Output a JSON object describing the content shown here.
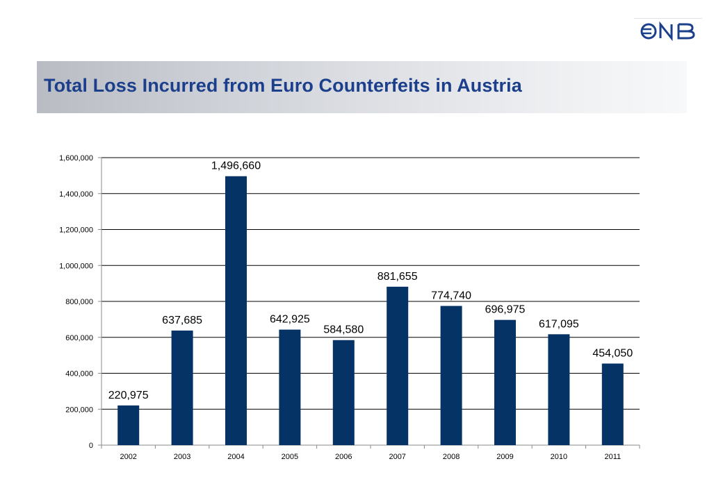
{
  "logo": {
    "text": "ONB"
  },
  "title": "Total Loss Incurred from Euro Counterfeits in Austria",
  "colors": {
    "bar": "#053366",
    "grid": "#000000",
    "title": "#1c3f8c"
  },
  "chart_data": {
    "type": "bar",
    "categories": [
      "2002",
      "2003",
      "2004",
      "2005",
      "2006",
      "2007",
      "2008",
      "2009",
      "2010",
      "2011"
    ],
    "values": [
      220975,
      637685,
      1496660,
      642925,
      584580,
      881655,
      774740,
      696975,
      617095,
      454050
    ],
    "data_labels": [
      "220,975",
      "637,685",
      "1,496,660",
      "642,925",
      "584,580",
      "881,655",
      "774,740",
      "696,975",
      "617,095",
      "454,050"
    ],
    "y_ticks": [
      0,
      200000,
      400000,
      600000,
      800000,
      1000000,
      1200000,
      1400000,
      1600000
    ],
    "y_tick_labels": [
      "0",
      "200,000",
      "400,000",
      "600,000",
      "800,000",
      "1,000,000",
      "1,200,000",
      "1,400,000",
      "1,600,000"
    ],
    "ylim": [
      0,
      1600000
    ],
    "xlabel": "",
    "ylabel": "",
    "grid": true,
    "legend": "none"
  }
}
